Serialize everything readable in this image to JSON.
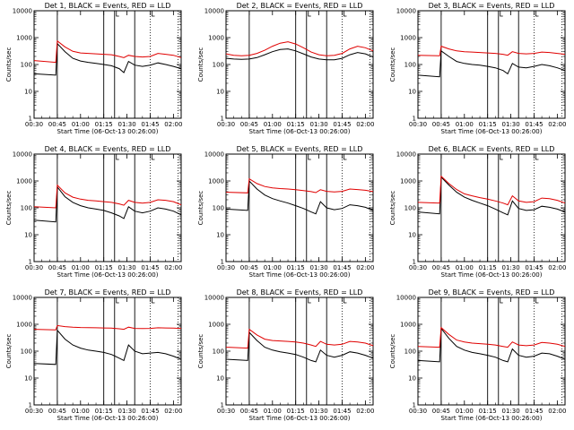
{
  "xlabel": "Start Time (06-Oct-13 00:26:00)",
  "ylabel": "Counts/sec",
  "x_ticks": [
    "00:30",
    "00:45",
    "01:00",
    "01:15",
    "01:30",
    "01:45",
    "02:00"
  ],
  "y_ticks": [
    "1",
    "10",
    "100",
    "1000",
    "10000"
  ],
  "colors": {
    "black_series": "#000000",
    "red_series": "#e00000"
  },
  "chart_data": [
    {
      "type": "line",
      "title": "Det 1, BLACK = Events, RED = LLD",
      "xlabel": "Start Time (06-Oct-13 00:26:00)",
      "ylabel": "Counts/sec",
      "x": [
        "00:30",
        "00:44",
        "00:45",
        "00:50",
        "00:55",
        "01:00",
        "01:05",
        "01:10",
        "01:15",
        "01:20",
        "01:25",
        "01:28",
        "01:31",
        "01:35",
        "01:40",
        "01:45",
        "01:50",
        "01:55",
        "02:00",
        "02:05"
      ],
      "ylim": [
        1,
        10000
      ],
      "y_scale": "log",
      "series": [
        {
          "name": "Events",
          "color": "#000000",
          "values": [
            45,
            40,
            600,
            300,
            170,
            135,
            120,
            110,
            100,
            90,
            70,
            50,
            130,
            95,
            85,
            95,
            115,
            100,
            85,
            70
          ]
        },
        {
          "name": "LLD",
          "color": "#e00000",
          "values": [
            140,
            120,
            750,
            450,
            310,
            270,
            260,
            250,
            240,
            230,
            200,
            180,
            220,
            200,
            190,
            200,
            260,
            240,
            220,
            180
          ]
        }
      ],
      "vlines_solid": [
        "00:45",
        "01:15",
        "01:22",
        "01:35"
      ],
      "vlines_dotted": [
        "01:45",
        "02:03"
      ]
    },
    {
      "type": "line",
      "title": "Det 2, BLACK = Events, RED = LLD",
      "xlabel": "Start Time (06-Oct-13 00:26:00)",
      "ylabel": "Counts/sec",
      "x": [
        "00:30",
        "00:35",
        "00:40",
        "00:45",
        "00:50",
        "00:55",
        "01:00",
        "01:05",
        "01:10",
        "01:15",
        "01:20",
        "01:25",
        "01:30",
        "01:35",
        "01:40",
        "01:45",
        "01:50",
        "01:55",
        "02:00",
        "02:05"
      ],
      "ylim": [
        1,
        10000
      ],
      "y_scale": "log",
      "series": [
        {
          "name": "Events",
          "color": "#000000",
          "values": [
            170,
            160,
            155,
            160,
            180,
            230,
            300,
            360,
            380,
            320,
            250,
            190,
            160,
            150,
            150,
            170,
            230,
            280,
            250,
            190
          ]
        },
        {
          "name": "LLD",
          "color": "#e00000",
          "values": [
            250,
            220,
            210,
            220,
            260,
            340,
            480,
            620,
            700,
            580,
            420,
            290,
            230,
            210,
            220,
            260,
            380,
            480,
            420,
            320
          ]
        }
      ],
      "vlines_solid": [
        "00:45",
        "01:15",
        "01:22",
        "01:35"
      ],
      "vlines_dotted": [
        "01:45",
        "02:03"
      ]
    },
    {
      "type": "line",
      "title": "Det 3, BLACK = Events, RED = LLD",
      "xlabel": "Start Time (06-Oct-13 00:26:00)",
      "ylabel": "Counts/sec",
      "x": [
        "00:30",
        "00:44",
        "00:45",
        "00:50",
        "00:55",
        "01:00",
        "01:05",
        "01:10",
        "01:15",
        "01:20",
        "01:25",
        "01:28",
        "01:31",
        "01:35",
        "01:40",
        "01:45",
        "01:50",
        "01:55",
        "02:00",
        "02:05"
      ],
      "ylim": [
        1,
        10000
      ],
      "y_scale": "log",
      "series": [
        {
          "name": "Events",
          "color": "#000000",
          "values": [
            40,
            35,
            320,
            200,
            130,
            110,
            100,
            95,
            85,
            75,
            60,
            45,
            110,
            80,
            75,
            85,
            100,
            90,
            75,
            60
          ]
        },
        {
          "name": "LLD",
          "color": "#e00000",
          "values": [
            220,
            210,
            480,
            380,
            320,
            300,
            290,
            280,
            270,
            260,
            240,
            220,
            300,
            260,
            250,
            260,
            290,
            280,
            260,
            240
          ]
        }
      ],
      "vlines_solid": [
        "00:45",
        "01:15",
        "01:22",
        "01:35"
      ],
      "vlines_dotted": [
        "01:45",
        "02:03"
      ]
    },
    {
      "type": "line",
      "title": "Det 4, BLACK = Events, RED = LLD",
      "xlabel": "Start Time (06-Oct-13 00:26:00)",
      "ylabel": "Counts/sec",
      "x": [
        "00:30",
        "00:44",
        "00:45",
        "00:50",
        "00:55",
        "01:00",
        "01:05",
        "01:10",
        "01:15",
        "01:20",
        "01:25",
        "01:28",
        "01:31",
        "01:35",
        "01:40",
        "01:45",
        "01:50",
        "01:55",
        "02:00",
        "02:05"
      ],
      "ylim": [
        1,
        10000
      ],
      "y_scale": "log",
      "series": [
        {
          "name": "Events",
          "color": "#000000",
          "values": [
            35,
            30,
            600,
            260,
            160,
            120,
            100,
            90,
            80,
            65,
            50,
            40,
            110,
            75,
            65,
            75,
            100,
            90,
            75,
            55
          ]
        },
        {
          "name": "LLD",
          "color": "#e00000",
          "values": [
            110,
            100,
            700,
            360,
            250,
            210,
            190,
            180,
            170,
            160,
            140,
            125,
            190,
            160,
            150,
            160,
            200,
            190,
            170,
            130
          ]
        }
      ],
      "vlines_solid": [
        "00:45",
        "01:15",
        "01:22",
        "01:35"
      ],
      "vlines_dotted": [
        "01:45",
        "02:03"
      ]
    },
    {
      "type": "line",
      "title": "Det 5, BLACK = Events, RED = LLD",
      "xlabel": "Start Time (06-Oct-13 00:26:00)",
      "ylabel": "Counts/sec",
      "x": [
        "00:30",
        "00:44",
        "00:45",
        "00:50",
        "00:55",
        "01:00",
        "01:05",
        "01:10",
        "01:15",
        "01:20",
        "01:25",
        "01:28",
        "01:31",
        "01:35",
        "01:40",
        "01:45",
        "01:50",
        "01:55",
        "02:00",
        "02:05"
      ],
      "ylim": [
        1,
        10000
      ],
      "y_scale": "log",
      "series": [
        {
          "name": "Events",
          "color": "#000000",
          "values": [
            90,
            80,
            1000,
            500,
            300,
            220,
            180,
            150,
            120,
            95,
            70,
            60,
            170,
            100,
            85,
            95,
            130,
            120,
            105,
            80
          ]
        },
        {
          "name": "LLD",
          "color": "#e00000",
          "values": [
            380,
            360,
            1200,
            800,
            620,
            550,
            520,
            500,
            470,
            440,
            400,
            370,
            470,
            410,
            390,
            410,
            500,
            480,
            450,
            400
          ]
        }
      ],
      "vlines_solid": [
        "00:45",
        "01:15",
        "01:22",
        "01:35"
      ],
      "vlines_dotted": [
        "01:45",
        "02:03"
      ]
    },
    {
      "type": "line",
      "title": "Det 6, BLACK = Events, RED = LLD",
      "xlabel": "Start Time (06-Oct-13 00:26:00)",
      "ylabel": "Counts/sec",
      "x": [
        "00:30",
        "00:44",
        "00:45",
        "00:50",
        "00:55",
        "01:00",
        "01:05",
        "01:10",
        "01:15",
        "01:20",
        "01:25",
        "01:28",
        "01:31",
        "01:35",
        "01:40",
        "01:45",
        "01:50",
        "01:55",
        "02:00",
        "02:05"
      ],
      "ylim": [
        1,
        10000
      ],
      "y_scale": "log",
      "series": [
        {
          "name": "Events",
          "color": "#000000",
          "values": [
            70,
            60,
            1400,
            700,
            380,
            250,
            190,
            150,
            120,
            90,
            65,
            55,
            180,
            95,
            80,
            85,
            115,
            105,
            90,
            70
          ]
        },
        {
          "name": "LLD",
          "color": "#e00000",
          "values": [
            160,
            150,
            1500,
            800,
            480,
            330,
            280,
            240,
            210,
            180,
            150,
            130,
            280,
            180,
            160,
            170,
            230,
            220,
            190,
            150
          ]
        }
      ],
      "vlines_solid": [
        "00:45",
        "01:15",
        "01:22",
        "01:35"
      ],
      "vlines_dotted": [
        "01:45",
        "02:03"
      ]
    },
    {
      "type": "line",
      "title": "Det 7, BLACK = Events, RED = LLD",
      "xlabel": "Start Time (06-Oct-13 00:26:00)",
      "ylabel": "Counts/sec",
      "x": [
        "00:30",
        "00:44",
        "00:45",
        "00:50",
        "00:55",
        "01:00",
        "01:05",
        "01:10",
        "01:15",
        "01:20",
        "01:25",
        "01:28",
        "01:31",
        "01:35",
        "01:40",
        "01:45",
        "01:50",
        "01:55",
        "02:00",
        "02:05"
      ],
      "ylim": [
        1,
        10000
      ],
      "y_scale": "log",
      "series": [
        {
          "name": "Events",
          "color": "#000000",
          "values": [
            35,
            32,
            600,
            280,
            170,
            130,
            110,
            100,
            90,
            75,
            55,
            45,
            170,
            100,
            80,
            85,
            90,
            80,
            65,
            50
          ]
        },
        {
          "name": "LLD",
          "color": "#e00000",
          "values": [
            650,
            620,
            900,
            820,
            780,
            760,
            750,
            740,
            730,
            720,
            680,
            650,
            780,
            700,
            690,
            700,
            740,
            730,
            720,
            700
          ]
        }
      ],
      "vlines_solid": [
        "00:45",
        "01:15",
        "01:22",
        "01:35"
      ],
      "vlines_dotted": [
        "01:45",
        "02:03"
      ]
    },
    {
      "type": "line",
      "title": "Det 8, BLACK = Events, RED = LLD",
      "xlabel": "Start Time (06-Oct-13 00:26:00)",
      "ylabel": "Counts/sec",
      "x": [
        "00:30",
        "00:44",
        "00:45",
        "00:50",
        "00:55",
        "01:00",
        "01:05",
        "01:10",
        "01:15",
        "01:20",
        "01:25",
        "01:28",
        "01:31",
        "01:35",
        "01:40",
        "01:45",
        "01:50",
        "01:55",
        "02:00",
        "02:05"
      ],
      "ylim": [
        1,
        10000
      ],
      "y_scale": "log",
      "series": [
        {
          "name": "Events",
          "color": "#000000",
          "values": [
            50,
            45,
            500,
            250,
            140,
            110,
            95,
            85,
            75,
            60,
            45,
            40,
            110,
            70,
            60,
            70,
            95,
            85,
            70,
            55
          ]
        },
        {
          "name": "LLD",
          "color": "#e00000",
          "values": [
            140,
            130,
            650,
            400,
            280,
            250,
            240,
            230,
            220,
            200,
            170,
            150,
            230,
            180,
            170,
            180,
            230,
            220,
            200,
            160
          ]
        }
      ],
      "vlines_solid": [
        "00:45",
        "01:15",
        "01:22",
        "01:35"
      ],
      "vlines_dotted": [
        "01:45",
        "02:03"
      ]
    },
    {
      "type": "line",
      "title": "Det 9, BLACK = Events, RED = LLD",
      "xlabel": "Start Time (06-Oct-13 00:26:00)",
      "ylabel": "Counts/sec",
      "x": [
        "00:30",
        "00:44",
        "00:45",
        "00:50",
        "00:55",
        "01:00",
        "01:05",
        "01:10",
        "01:15",
        "01:20",
        "01:25",
        "01:28",
        "01:31",
        "01:35",
        "01:40",
        "01:45",
        "01:50",
        "01:55",
        "02:00",
        "02:05"
      ],
      "ylim": [
        1,
        10000
      ],
      "y_scale": "log",
      "series": [
        {
          "name": "Events",
          "color": "#000000",
          "values": [
            45,
            40,
            700,
            300,
            150,
            110,
            90,
            80,
            70,
            60,
            45,
            40,
            120,
            70,
            60,
            65,
            85,
            80,
            65,
            50
          ]
        },
        {
          "name": "LLD",
          "color": "#e00000",
          "values": [
            150,
            140,
            750,
            420,
            260,
            220,
            200,
            190,
            180,
            170,
            150,
            140,
            220,
            170,
            160,
            170,
            210,
            200,
            180,
            150
          ]
        }
      ],
      "vlines_solid": [
        "00:45",
        "01:15",
        "01:22",
        "01:35"
      ],
      "vlines_dotted": [
        "01:45",
        "02:03"
      ]
    }
  ]
}
